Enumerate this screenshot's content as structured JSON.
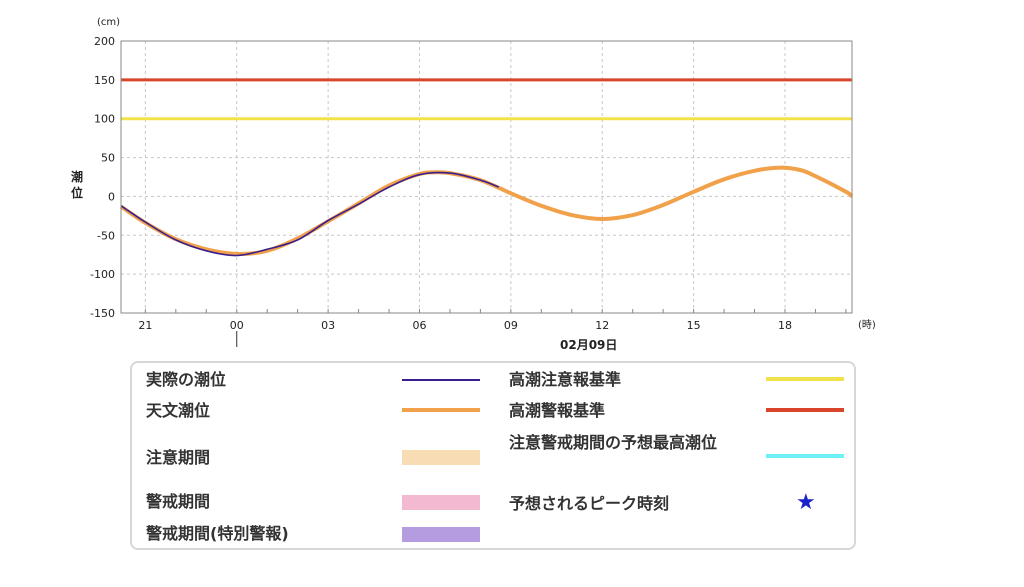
{
  "chart_data": {
    "type": "line",
    "unit_label": "(cm)",
    "ylabel": "潮位",
    "xunit_label": "(時)",
    "date_label": "02月09日",
    "ylim": [
      -150,
      200
    ],
    "yticks": [
      200,
      150,
      100,
      50,
      0,
      -50,
      -100,
      -150
    ],
    "xlim_hours": [
      -3.8,
      20.2
    ],
    "xticks": [
      {
        "hour": -3,
        "label": "21"
      },
      {
        "hour": 0,
        "label": "00"
      },
      {
        "hour": 3,
        "label": "03"
      },
      {
        "hour": 6,
        "label": "06"
      },
      {
        "hour": 9,
        "label": "09"
      },
      {
        "hour": 12,
        "label": "12"
      },
      {
        "hour": 15,
        "label": "15"
      },
      {
        "hour": 18,
        "label": "18"
      }
    ],
    "grid": true,
    "thresholds": [
      {
        "name": "高潮警報基準",
        "value": 150,
        "color": "#d9452b"
      },
      {
        "name": "高潮注意報基準",
        "value": 100,
        "color": "#f2e24a"
      }
    ],
    "series": [
      {
        "name": "天文潮位",
        "color": "#f0a14a",
        "x": [
          -3.8,
          -3,
          -2,
          -1,
          0,
          1,
          2,
          3,
          4,
          5,
          6,
          6.5,
          7,
          8,
          9,
          10,
          11,
          12,
          13,
          14,
          15,
          16,
          17,
          17.8,
          18.5,
          19,
          20,
          20.2
        ],
        "y": [
          -13,
          -34,
          -55,
          -68,
          -74,
          -70,
          -54,
          -32,
          -9,
          14,
          29,
          31,
          30,
          21,
          4,
          -12,
          -24,
          -29,
          -24,
          -11,
          6,
          22,
          33,
          37,
          34,
          26,
          6,
          0
        ]
      },
      {
        "name": "実際の潮位",
        "color": "#3b1f8c",
        "x": [
          -3.8,
          -3,
          -2,
          -1,
          0,
          1,
          2,
          3,
          4,
          5,
          6,
          7,
          8,
          8.6
        ],
        "y": [
          -12,
          -33,
          -56,
          -70,
          -76,
          -68,
          -56,
          -31,
          -10,
          12,
          28,
          30,
          21,
          12
        ]
      }
    ]
  },
  "legend": {
    "actual": {
      "label": "実際の潮位",
      "color": "#3b1f8c"
    },
    "astronomical": {
      "label": "天文潮位",
      "color": "#f0a14a"
    },
    "caution_period": {
      "label": "注意期間",
      "color": "#f8dcb4"
    },
    "warning_period": {
      "label": "警戒期間",
      "color": "#f3b9d1"
    },
    "special_warning_period": {
      "label": "警戒期間(特別警報)",
      "color": "#b59be0"
    },
    "advisory_level": {
      "label": "高潮注意報基準",
      "color": "#f2e24a"
    },
    "warning_level": {
      "label": "高潮警報基準",
      "color": "#d9452b"
    },
    "max_tide": {
      "label": "注意警戒期間の予想最高潮位",
      "color": "#6ef0f7"
    },
    "peak_time": {
      "label": "予想されるピーク時刻",
      "color": "#1a23c9",
      "icon": "star-icon",
      "glyph": "★"
    }
  }
}
